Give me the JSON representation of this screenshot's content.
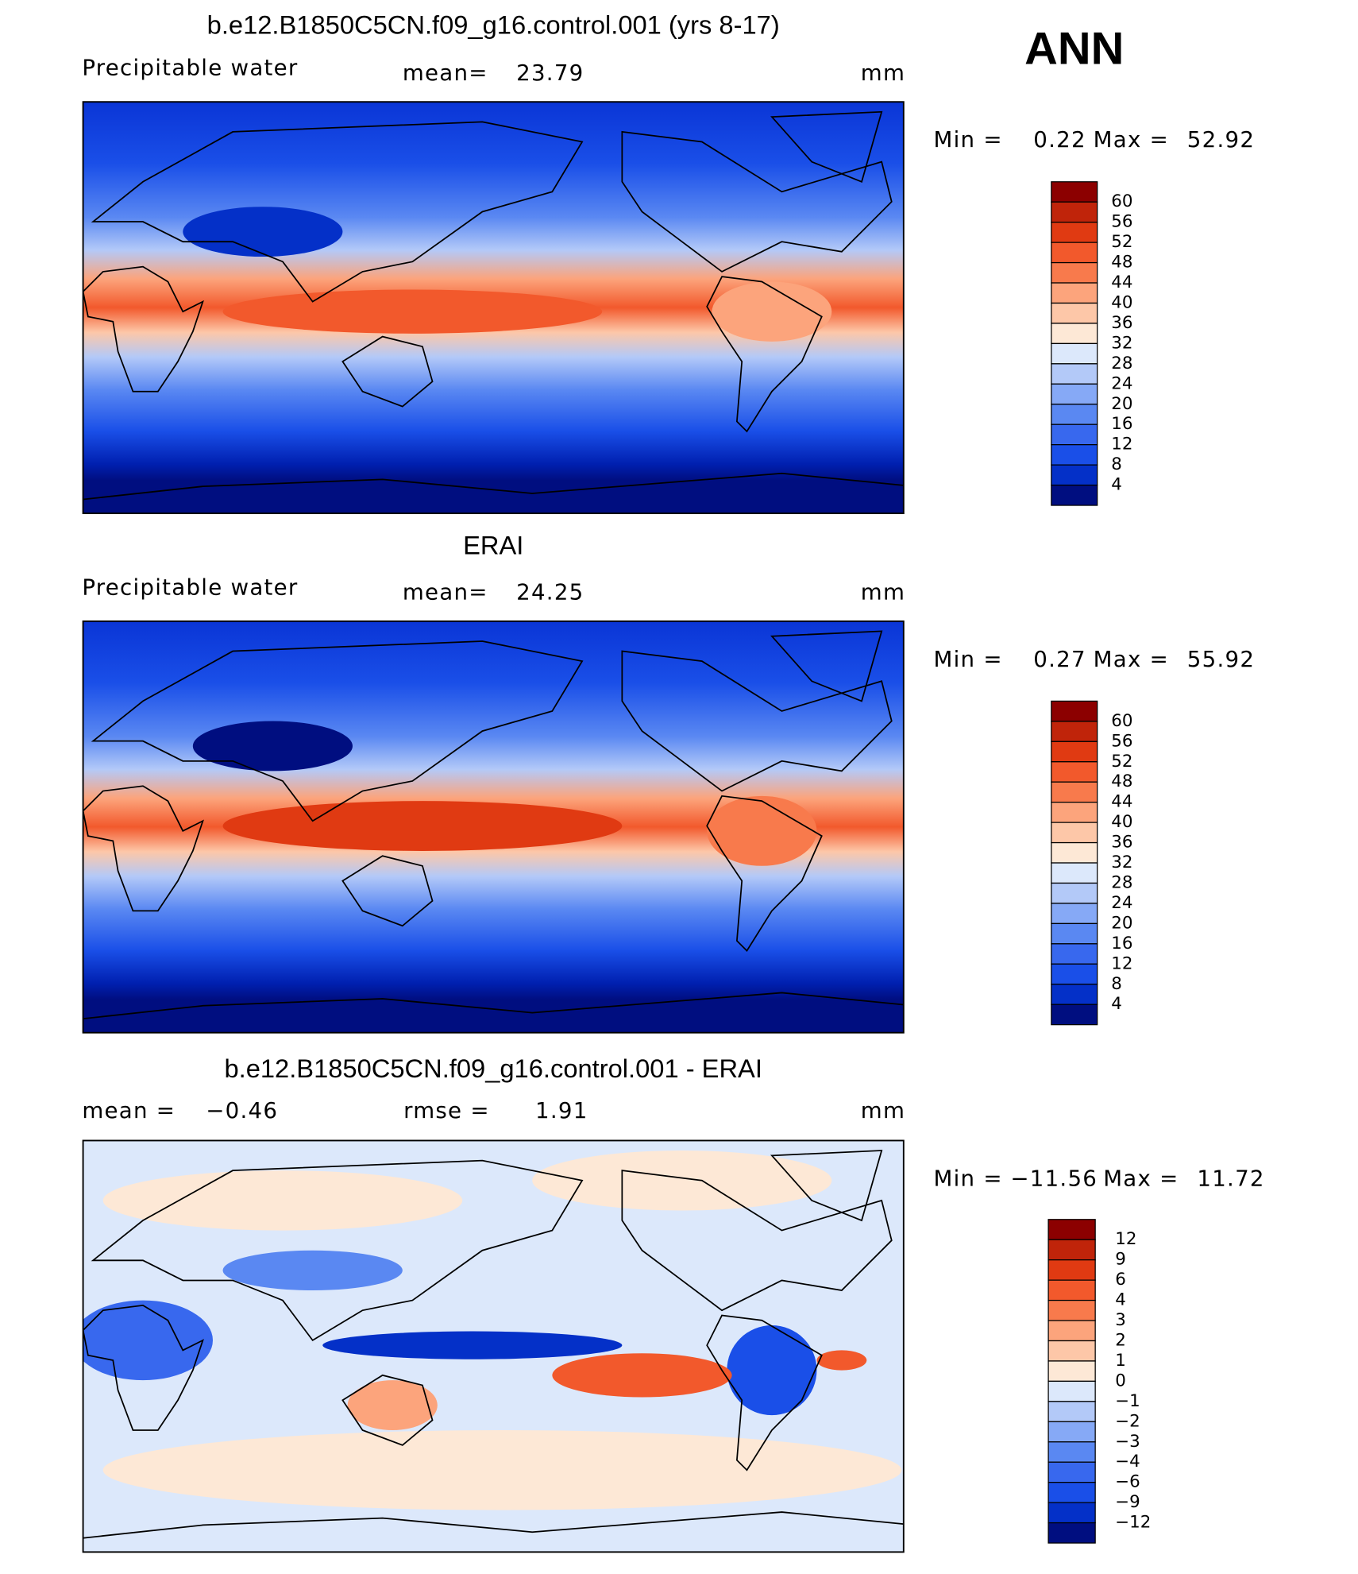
{
  "header": {
    "title": "ANN"
  },
  "palette": [
    "#8c0000",
    "#c0240a",
    "#e03a12",
    "#f2592c",
    "#f87a4c",
    "#fca47c",
    "#fdc7a8",
    "#fde8d6",
    "#dce8fb",
    "#b3c9f8",
    "#86a9f6",
    "#5a88f2",
    "#3868ee",
    "#1a4fe8",
    "#0430c8",
    "#000e80"
  ],
  "panels": [
    {
      "title": "b.e12.B1850C5CN.f09_g16.control.001 (yrs 8-17)",
      "variable": "Precipitable water",
      "stat1_label": "mean=",
      "stat1_value": "23.79",
      "units": "mm",
      "min_label": "Min =",
      "min": "0.22",
      "max_label": "Max =",
      "max": "52.92",
      "levels": [
        "60",
        "56",
        "52",
        "48",
        "44",
        "40",
        "36",
        "32",
        "28",
        "24",
        "20",
        "16",
        "12",
        "8",
        "4"
      ]
    },
    {
      "title": "ERAI",
      "variable": "Precipitable water",
      "stat1_label": "mean=",
      "stat1_value": "24.25",
      "units": "mm",
      "min_label": "Min =",
      "min": "0.27",
      "max_label": "Max =",
      "max": "55.92",
      "levels": [
        "60",
        "56",
        "52",
        "48",
        "44",
        "40",
        "36",
        "32",
        "28",
        "24",
        "20",
        "16",
        "12",
        "8",
        "4"
      ]
    },
    {
      "title": "b.e12.B1850C5CN.f09_g16.control.001 - ERAI",
      "stat1_label": "mean =",
      "stat1_value": "−0.46",
      "stat2_label": "rmse =",
      "stat2_value": "1.91",
      "units": "mm",
      "min_label": "Min =",
      "min": "−11.56",
      "max_label": "Max =",
      "max": "11.72",
      "levels": [
        "12",
        "9",
        "6",
        "4",
        "3",
        "2",
        "1",
        "0",
        "−1",
        "−2",
        "−3",
        "−4",
        "−6",
        "−9",
        "−12"
      ]
    }
  ]
}
